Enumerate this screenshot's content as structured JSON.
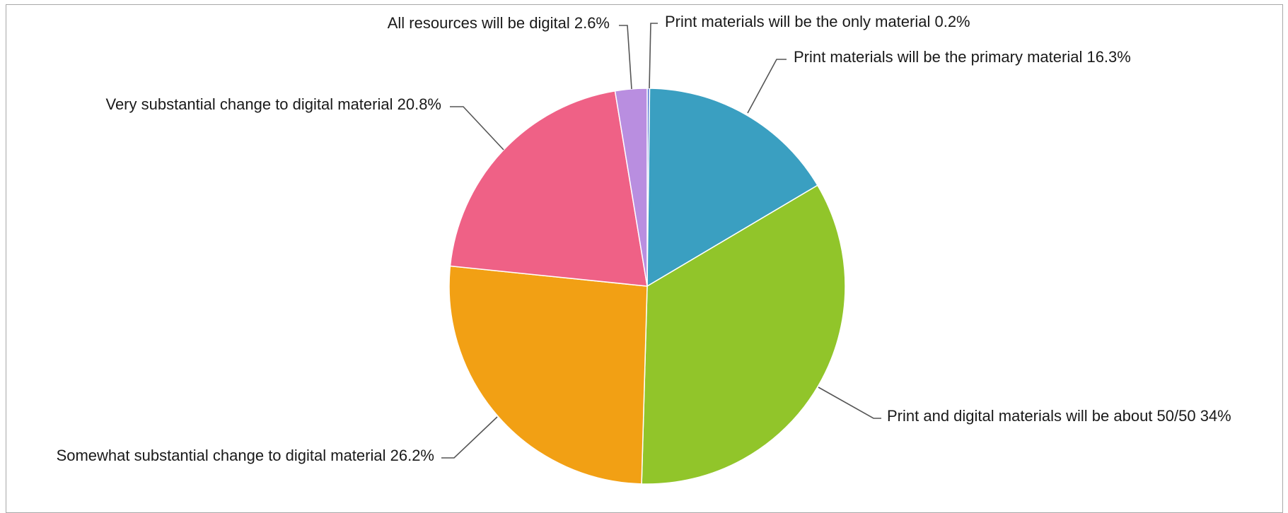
{
  "chart_data": {
    "type": "pie",
    "title": "",
    "legend": "none",
    "slices": [
      {
        "label": "Print materials will be the only material 0.2%",
        "category": "Print materials will be the only material",
        "value": 0.2,
        "color": "#5b7bd5"
      },
      {
        "label": "Print materials will be the primary material 16.3%",
        "category": "Print materials will be the primary material",
        "value": 16.3,
        "color": "#3a9fc1"
      },
      {
        "label": "Print and digital materials will be about 50/50 34%",
        "category": "Print and digital materials will be about 50/50",
        "value": 34,
        "color": "#91c52a"
      },
      {
        "label": "Somewhat substantial change to digital material 26.2%",
        "category": "Somewhat substantial change to digital material",
        "value": 26.2,
        "color": "#f2a014"
      },
      {
        "label": "Very substantial change to digital material 20.8%",
        "category": "Very substantial change to digital material",
        "value": 20.8,
        "color": "#ef6186"
      },
      {
        "label": "All resources will be digital 2.6%",
        "category": "All resources will be digital",
        "value": 2.6,
        "color": "#b98ee0"
      }
    ]
  }
}
